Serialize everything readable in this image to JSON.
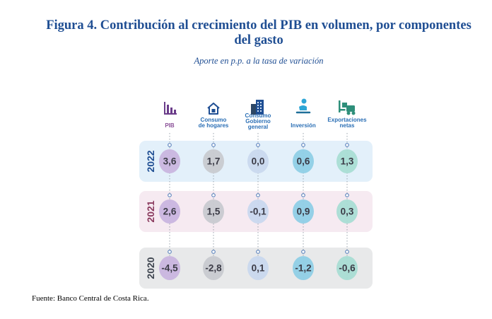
{
  "title": "Figura 4.  Contribución al crecimiento del PIB en volumen, por componentes del gasto",
  "subtitle": "Aporte en p.p. a la tasa de variación",
  "source": "Fuente: Banco Central de Costa Rica.",
  "colors": {
    "title": "#1f4e93",
    "label_blue": "#2b6fb5",
    "label_purple": "#8a4f97",
    "year_2022": "#1f4e93",
    "year_2021": "#8a3a5e",
    "year_2020": "#3f4650"
  },
  "chart_data": {
    "type": "table",
    "categories": [
      "PIB",
      "Consumo de hogares",
      "Consumo Gobierno general",
      "Inversión",
      "Exportaciones netas"
    ],
    "icons": [
      "bar-chart-icon",
      "house-icon",
      "building-icon",
      "worker-icon",
      "forklift-icon"
    ],
    "category_colors": [
      "#c9b5df",
      "#c8cad0",
      "#c9d8ee",
      "#8fcfe6",
      "#a9ddd4"
    ],
    "rows": [
      {
        "year": "2022",
        "values": [
          "3,6",
          "1,7",
          "0,0",
          "0,6",
          "1,3"
        ],
        "band_color": "#e3f0fa"
      },
      {
        "year": "2021",
        "values": [
          "2,6",
          "1,5",
          "-0,1",
          "0,9",
          "0,3"
        ],
        "band_color": "#f6eaf1"
      },
      {
        "year": "2020",
        "values": [
          "-4,5",
          "-2,8",
          "0,1",
          "-1,2",
          "-0,6"
        ],
        "band_color": "#e8e9ea"
      }
    ]
  }
}
